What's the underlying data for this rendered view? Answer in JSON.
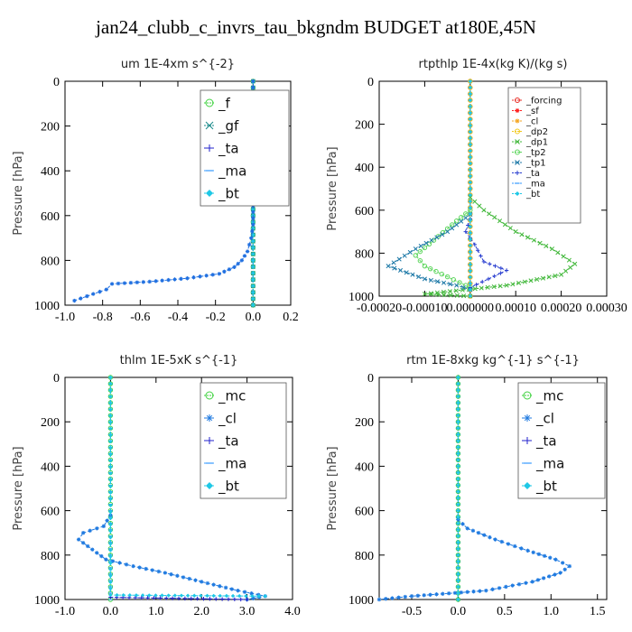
{
  "page": {
    "title": "jan24_clubb_c_invrs_tau_bkgndm  BUDGET at180E,45N"
  },
  "chart_data": [
    {
      "id": "um",
      "type": "line",
      "title": "um   1E-4xm s^{-2}",
      "ylabel": "Pressure [hPa]",
      "xlim": [
        -1.0,
        0.2
      ],
      "ylim": [
        1000,
        0
      ],
      "xticks": [
        -1.0,
        -0.8,
        -0.6,
        -0.4,
        -0.2,
        0.0,
        0.2
      ],
      "xtick_labels": [
        "-1.0",
        "-0.8",
        "-0.6",
        "-0.4",
        "-0.2",
        "0.0",
        "0.2"
      ],
      "yticks": [
        0,
        200,
        400,
        600,
        800,
        1000
      ],
      "ytick_labels": [
        "0",
        "200",
        "400",
        "600",
        "800",
        "1000"
      ],
      "legend_position": "top-right",
      "series": [
        {
          "name": "_f",
          "color": "#3fd23f",
          "marker": "o",
          "points": [
            [
              0,
              0
            ],
            [
              0,
              1000
            ]
          ]
        },
        {
          "name": "_gf",
          "color": "#1a8a8a",
          "marker": "x",
          "points": [
            [
              0,
              0
            ],
            [
              0,
              1000
            ]
          ]
        },
        {
          "name": "_ta",
          "color": "#2222cc",
          "marker": "+",
          "points": [
            [
              0,
              0
            ],
            [
              0,
              1000
            ]
          ]
        },
        {
          "name": "_ma",
          "color": "#3399ff",
          "marker": "-",
          "points": [
            [
              0,
              0
            ],
            [
              0,
              1000
            ]
          ]
        },
        {
          "name": "_bt",
          "color": "#1ec8e6",
          "marker": "diamond",
          "points": [
            [
              0,
              0
            ],
            [
              0,
              1000
            ]
          ]
        },
        {
          "name": "",
          "color": "#1f6fe0",
          "marker": "*",
          "points": [
            [
              -0.95,
              980
            ],
            [
              -0.85,
              950
            ],
            [
              -0.78,
              930
            ],
            [
              -0.75,
              905
            ],
            [
              -0.55,
              895
            ],
            [
              -0.35,
              880
            ],
            [
              -0.18,
              860
            ],
            [
              -0.1,
              830
            ],
            [
              -0.06,
              800
            ],
            [
              -0.03,
              760
            ],
            [
              -0.01,
              700
            ],
            [
              0,
              640
            ],
            [
              0,
              0
            ]
          ]
        }
      ]
    },
    {
      "id": "rtpthlp",
      "type": "line",
      "title": "rtpthlp   1E-4x(kg K)/(kg s)",
      "ylabel": "Pressure [hPa]",
      "xlim": [
        -0.0002,
        0.0003
      ],
      "ylim": [
        1000,
        0
      ],
      "xticks": [
        -0.0002,
        -0.0001,
        0.0,
        0.0001,
        0.0002,
        0.0003
      ],
      "xtick_labels": [
        "-0.00020",
        "-0.00010",
        "0.000000",
        "0.00010",
        "0.00020",
        "0.00030"
      ],
      "yticks": [
        0,
        200,
        400,
        600,
        800,
        1000
      ],
      "ytick_labels": [
        "0",
        "200",
        "400",
        "600",
        "800",
        "1000"
      ],
      "legend_position": "top-right",
      "series": [
        {
          "name": "_forcing",
          "color": "#e8302a",
          "marker": "o",
          "points": [
            [
              0,
              0
            ],
            [
              0,
              1000
            ]
          ]
        },
        {
          "name": "_sf",
          "color": "#ff2020",
          "marker": "*",
          "points": [
            [
              0,
              0
            ],
            [
              0,
              1000
            ]
          ]
        },
        {
          "name": "_cl",
          "color": "#f5a623",
          "marker": "*",
          "points": [
            [
              0,
              0
            ],
            [
              0,
              1000
            ]
          ]
        },
        {
          "name": "_dp2",
          "color": "#f2c81a",
          "marker": "o",
          "points": [
            [
              0,
              0
            ],
            [
              0,
              1000
            ]
          ]
        },
        {
          "name": "_dp1",
          "color": "#42b83b",
          "marker": "x",
          "points": [
            [
              0,
              540
            ],
            [
              3e-05,
              600
            ],
            [
              0.0001,
              700
            ],
            [
              0.00018,
              780
            ],
            [
              0.00023,
              850
            ],
            [
              0.0002,
              900
            ],
            [
              8e-05,
              950
            ],
            [
              -0.0001,
              990
            ],
            [
              0,
              1000
            ]
          ]
        },
        {
          "name": "_tp2",
          "color": "#5dd65d",
          "marker": "o",
          "points": [
            [
              0,
              600
            ],
            [
              -3e-05,
              650
            ],
            [
              -8e-05,
              740
            ],
            [
              -0.00012,
              810
            ],
            [
              -0.0001,
              860
            ],
            [
              -5e-05,
              910
            ],
            [
              -1e-05,
              950
            ],
            [
              0,
              960
            ]
          ]
        },
        {
          "name": "_tp1",
          "color": "#1f7aa8",
          "marker": "x",
          "points": [
            [
              0,
              620
            ],
            [
              -5e-05,
              700
            ],
            [
              -0.00012,
              780
            ],
            [
              -0.00018,
              860
            ],
            [
              -0.0001,
              920
            ],
            [
              -3e-05,
              950
            ],
            [
              0,
              970
            ]
          ]
        },
        {
          "name": "_ta",
          "color": "#2a3fd0",
          "marker": "+",
          "points": [
            [
              0,
              640
            ],
            [
              -1e-05,
              700
            ],
            [
              1e-05,
              760
            ],
            [
              3e-05,
              840
            ],
            [
              8e-05,
              880
            ],
            [
              4e-05,
              920
            ],
            [
              0,
              960
            ]
          ]
        },
        {
          "name": "_ma",
          "color": "#3399ff",
          "marker": "-",
          "points": [
            [
              0,
              0
            ],
            [
              0,
              1000
            ]
          ]
        },
        {
          "name": "_bt",
          "color": "#1ec8e6",
          "marker": "diamond",
          "points": [
            [
              0,
              0
            ],
            [
              0,
              1000
            ]
          ]
        }
      ]
    },
    {
      "id": "thlm",
      "type": "line",
      "title": "thlm   1E-5xK  s^{-1}",
      "ylabel": "Pressure [hPa]",
      "xlim": [
        -1.0,
        4.0
      ],
      "ylim": [
        1000,
        0
      ],
      "xticks": [
        -1.0,
        0.0,
        1.0,
        2.0,
        3.0,
        4.0
      ],
      "xtick_labels": [
        "-1.0",
        "0.0",
        "1.0",
        "2.0",
        "3.0",
        "4.0"
      ],
      "yticks": [
        0,
        200,
        400,
        600,
        800,
        1000
      ],
      "ytick_labels": [
        "0",
        "200",
        "400",
        "600",
        "800",
        "1000"
      ],
      "legend_position": "top-right",
      "series": [
        {
          "name": "_mc",
          "color": "#3fd23f",
          "marker": "o",
          "points": [
            [
              0,
              0
            ],
            [
              0,
              1000
            ]
          ]
        },
        {
          "name": "_cl",
          "color": "#1f7ae0",
          "marker": "*",
          "points": [
            [
              0,
              620
            ],
            [
              -0.15,
              670
            ],
            [
              -0.6,
              700
            ],
            [
              -0.7,
              730
            ],
            [
              -0.5,
              760
            ],
            [
              -0.1,
              820
            ],
            [
              0.5,
              850
            ],
            [
              1.2,
              880
            ],
            [
              2.0,
              920
            ],
            [
              2.8,
              960
            ],
            [
              3.4,
              985
            ],
            [
              3.0,
              1000
            ]
          ]
        },
        {
          "name": "_ta",
          "color": "#2222cc",
          "marker": "+",
          "points": [
            [
              0,
              990
            ],
            [
              3.0,
              1000
            ]
          ]
        },
        {
          "name": "_ma",
          "color": "#3399ff",
          "marker": "-",
          "points": [
            [
              0,
              0
            ],
            [
              0,
              1000
            ]
          ]
        },
        {
          "name": "_bt",
          "color": "#1ec8e6",
          "marker": "diamond",
          "points": [
            [
              0,
              0
            ],
            [
              0,
              980
            ],
            [
              3.4,
              985
            ]
          ]
        }
      ]
    },
    {
      "id": "rtm",
      "type": "line",
      "title": "rtm   1E-8xkg kg^{-1} s^{-1}",
      "ylabel": "Pressure [hPa]",
      "xlim": [
        -0.85,
        1.6
      ],
      "ylim": [
        1000,
        0
      ],
      "xticks": [
        -0.5,
        0.0,
        0.5,
        1.0,
        1.5
      ],
      "xtick_labels": [
        "-0.5",
        "0.0",
        "0.5",
        "1.0",
        "1.5"
      ],
      "yticks": [
        0,
        200,
        400,
        600,
        800,
        1000
      ],
      "ytick_labels": [
        "0",
        "200",
        "400",
        "600",
        "800",
        "1000"
      ],
      "legend_position": "top-right",
      "series": [
        {
          "name": "_mc",
          "color": "#3fd23f",
          "marker": "o",
          "points": [
            [
              0,
              0
            ],
            [
              0,
              1000
            ]
          ]
        },
        {
          "name": "_cl",
          "color": "#1f7ae0",
          "marker": "*",
          "points": [
            [
              0,
              640
            ],
            [
              0.1,
              680
            ],
            [
              0.4,
              730
            ],
            [
              0.75,
              780
            ],
            [
              1.05,
              820
            ],
            [
              1.2,
              850
            ],
            [
              1.1,
              880
            ],
            [
              0.8,
              920
            ],
            [
              0.3,
              960
            ],
            [
              -0.5,
              985
            ],
            [
              -0.85,
              1000
            ]
          ]
        },
        {
          "name": "_ta",
          "color": "#2222cc",
          "marker": "+",
          "points": [
            [
              0,
              0
            ],
            [
              0,
              1000
            ]
          ]
        },
        {
          "name": "_ma",
          "color": "#3399ff",
          "marker": "-",
          "points": [
            [
              0,
              0
            ],
            [
              0,
              1000
            ]
          ]
        },
        {
          "name": "_bt",
          "color": "#1ec8e6",
          "marker": "diamond",
          "points": [
            [
              0,
              0
            ],
            [
              0,
              1000
            ]
          ]
        }
      ]
    }
  ]
}
